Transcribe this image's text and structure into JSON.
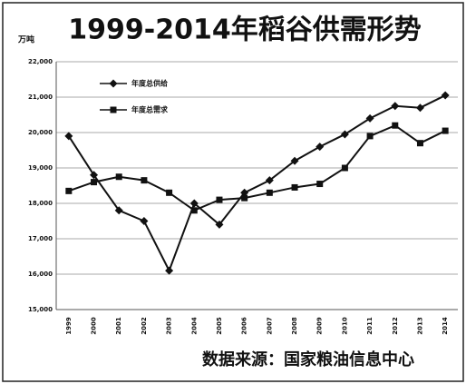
{
  "chart_data": {
    "type": "line",
    "title": "1999-2014年稻谷供需形势",
    "y_unit": "万吨",
    "source": "数据来源：国家粮油信息中心",
    "categories": [
      "1999",
      "2000",
      "2001",
      "2002",
      "2003",
      "2004",
      "2005",
      "2006",
      "2007",
      "2008",
      "2009",
      "2010",
      "2011",
      "2012",
      "2013",
      "2014"
    ],
    "series": [
      {
        "name": "年度总供给",
        "color": "#111111",
        "marker": "diamond",
        "values": [
          19900,
          18800,
          17800,
          17500,
          16100,
          18000,
          17400,
          18300,
          18650,
          19200,
          19600,
          19950,
          20400,
          20750,
          20700,
          21050
        ]
      },
      {
        "name": "年度总需求",
        "color": "#111111",
        "marker": "square",
        "values": [
          18350,
          18600,
          18750,
          18650,
          18300,
          17800,
          18100,
          18150,
          18300,
          18450,
          18550,
          19000,
          19900,
          20200,
          19700,
          20050
        ]
      }
    ],
    "ylim": [
      15000,
      22000
    ],
    "yticks": [
      {
        "value": 15000,
        "label": "15,000"
      },
      {
        "value": 16000,
        "label": "16,000"
      },
      {
        "value": 17000,
        "label": "17,000"
      },
      {
        "value": 18000,
        "label": "18,000"
      },
      {
        "value": 19000,
        "label": "19,000"
      },
      {
        "value": 20000,
        "label": "20,000"
      },
      {
        "value": 21000,
        "label": "21,000"
      },
      {
        "value": 22000,
        "label": "22,000"
      }
    ],
    "grid": true
  }
}
